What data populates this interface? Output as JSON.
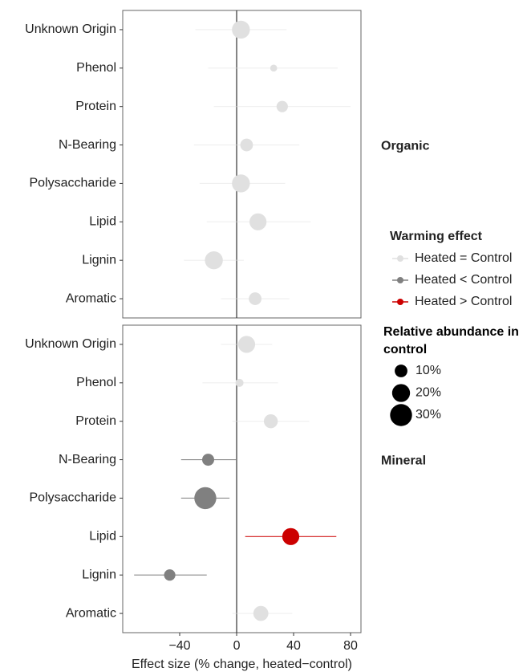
{
  "chart_data": [
    {
      "type": "forest",
      "facet": "Organic",
      "categories": [
        "Unknown Origin",
        "Phenol",
        "Protein",
        "N-Bearing",
        "Polysaccharide",
        "Lipid",
        "Lignin",
        "Aromatic"
      ],
      "values": [
        3,
        26,
        32,
        7,
        3,
        15,
        -16,
        13
      ],
      "lower": [
        -29,
        -20,
        -16,
        -30,
        -26,
        -21,
        -37,
        -11
      ],
      "upper": [
        35,
        71,
        80,
        44,
        34,
        52,
        5,
        37
      ],
      "sizes": [
        20,
        3,
        8,
        10,
        20,
        18,
        20,
        10
      ],
      "colors": [
        "#e0e0e0",
        "#e0e0e0",
        "#e0e0e0",
        "#e0e0e0",
        "#e0e0e0",
        "#e0e0e0",
        "#e0e0e0",
        "#e0e0e0"
      ],
      "xlim": [
        -80,
        87.3
      ],
      "xticks": [
        {
          "value": -40,
          "label": "−40"
        },
        0,
        40,
        80
      ],
      "legend_title": "Warming effect",
      "legend_items": [
        {
          "name": "Heated = Control",
          "color": "#e0e0e0"
        },
        {
          "name": "Heated < Control",
          "color": "#808080"
        },
        {
          "name": "Heated > Control",
          "color": "#cc0000"
        }
      ],
      "size_title": "Relative abundance in control",
      "size_legend": [
        10,
        20,
        30
      ],
      "size_legend_labels": [
        "10%",
        "20%",
        "30%"
      ]
    },
    {
      "type": "forest",
      "facet": "Mineral",
      "categories": [
        "Unknown Origin",
        "Phenol",
        "Protein",
        "N-Bearing",
        "Polysaccharide",
        "Lipid",
        "Lignin",
        "Aromatic"
      ],
      "values": [
        7,
        2,
        24,
        -20,
        -22,
        38,
        -47,
        17
      ],
      "lower": [
        -11,
        -24,
        -3,
        -39,
        -39,
        6,
        -72,
        -3
      ],
      "upper": [
        25,
        29,
        51,
        0,
        -5,
        70,
        -21,
        39
      ],
      "sizes": [
        18,
        4,
        12,
        9,
        30,
        18,
        8,
        14
      ],
      "colors": [
        "#e0e0e0",
        "#e0e0e0",
        "#e0e0e0",
        "#808080",
        "#808080",
        "#cc0000",
        "#808080",
        "#e0e0e0"
      ],
      "xlim": [
        -80,
        87.3
      ],
      "xticks": [
        {
          "value": -40,
          "label": "−40"
        },
        0,
        40,
        80
      ],
      "xlabel": "Effect size (% change, heated−control)"
    }
  ]
}
